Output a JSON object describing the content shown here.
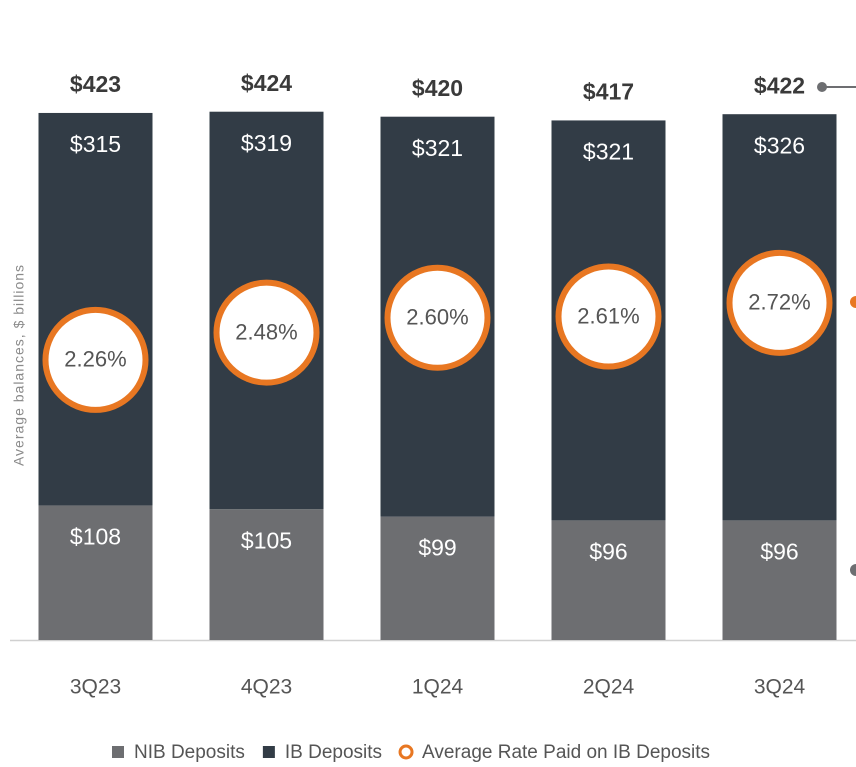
{
  "chart_data": {
    "type": "bar",
    "stacked": true,
    "y_label": "Average balances, $ billions",
    "categories": [
      "3Q23",
      "4Q23",
      "1Q24",
      "2Q24",
      "3Q24"
    ],
    "series": [
      {
        "name": "NIB Deposits",
        "color": "#6d6e71",
        "values": [
          108,
          105,
          99,
          96,
          96
        ],
        "value_labels": [
          "$108",
          "$105",
          "$99",
          "$96",
          "$96"
        ]
      },
      {
        "name": "IB Deposits",
        "color": "#323c46",
        "values": [
          315,
          319,
          321,
          321,
          326
        ],
        "value_labels": [
          "$315",
          "$319",
          "$321",
          "$321",
          "$326"
        ]
      },
      {
        "name": "Average Rate Paid on IB Deposits",
        "color": "#e87722",
        "axis": "y2",
        "values": [
          2.26,
          2.48,
          2.6,
          2.61,
          2.72
        ],
        "value_labels": [
          "2.26%",
          "2.48%",
          "2.60%",
          "2.61%",
          "2.72%"
        ]
      }
    ],
    "totals": [
      423,
      424,
      420,
      417,
      422
    ],
    "total_labels": [
      "$423",
      "$424",
      "$420",
      "$417",
      "$422"
    ],
    "ylim": [
      0,
      465.5
    ],
    "y2lim": [
      0,
      4.68
    ]
  }
}
